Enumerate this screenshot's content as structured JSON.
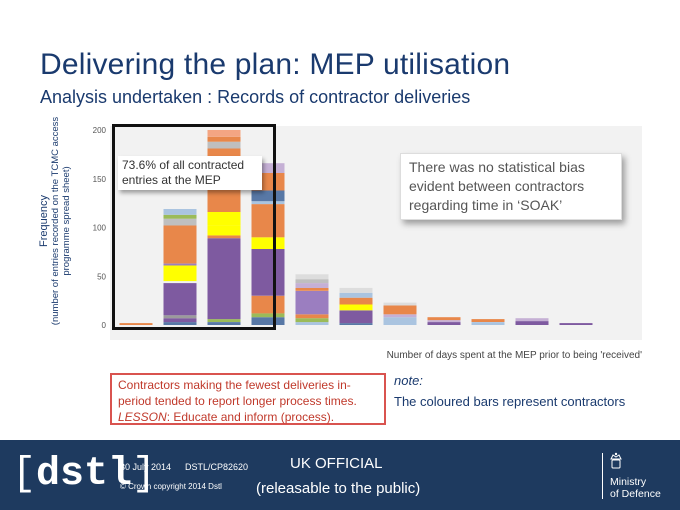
{
  "header": {
    "title": "Delivering the plan: MEP utilisation",
    "subtitle": "Analysis undertaken : Records of contractor deliveries"
  },
  "chart_data": {
    "type": "bar",
    "stacked": true,
    "title": "",
    "ylabel": "Frequency",
    "ylabel_note": "(number of entries recorded on the TCMC access programme spread sheet)",
    "xlabel": "Number of days spent at the MEP prior to being 'received'",
    "ylim": [
      0,
      200
    ],
    "yticks": [
      "0",
      "50",
      "100",
      "150",
      "200"
    ],
    "bin_count": 12,
    "bars": [
      {
        "index": 0,
        "segments": [
          {
            "color": "#e8874a",
            "value": 2
          }
        ]
      },
      {
        "index": 1,
        "segments": [
          {
            "color": "#5878a6",
            "value": 3
          },
          {
            "color": "#7e5aa0",
            "value": 4
          },
          {
            "color": "#9b9b9b",
            "value": 3
          },
          {
            "color": "#7e5aa0",
            "value": 33
          },
          {
            "color": "#f0f0f0",
            "value": 2
          },
          {
            "color": "#ffff00",
            "value": 16
          },
          {
            "color": "#9b7ec0",
            "value": 2
          },
          {
            "color": "#e8874a",
            "value": 39
          },
          {
            "color": "#bfbfbf",
            "value": 7
          },
          {
            "color": "#9bbb59",
            "value": 4
          },
          {
            "color": "#aac4e0",
            "value": 6
          }
        ]
      },
      {
        "index": 2,
        "segments": [
          {
            "color": "#5878a6",
            "value": 3
          },
          {
            "color": "#9bbb59",
            "value": 3
          },
          {
            "color": "#7e5aa0",
            "value": 83
          },
          {
            "color": "#e8874a",
            "value": 3
          },
          {
            "color": "#ffff00",
            "value": 10
          },
          {
            "color": "#ffff00",
            "value": 14
          },
          {
            "color": "#e8874a",
            "value": 30
          },
          {
            "color": "#5878a6",
            "value": 10
          },
          {
            "color": "#aac4e0",
            "value": 10
          },
          {
            "color": "#e8874a",
            "value": 15
          },
          {
            "color": "#bfbfbf",
            "value": 7
          },
          {
            "color": "#e8874a",
            "value": 5
          },
          {
            "color": "#f4a582",
            "value": 7
          }
        ]
      },
      {
        "index": 3,
        "segments": [
          {
            "color": "#5878a6",
            "value": 8
          },
          {
            "color": "#9bbb59",
            "value": 4
          },
          {
            "color": "#e8874a",
            "value": 18
          },
          {
            "color": "#7e5aa0",
            "value": 48
          },
          {
            "color": "#ffff00",
            "value": 12
          },
          {
            "color": "#e8874a",
            "value": 34
          },
          {
            "color": "#aac4e0",
            "value": 3
          },
          {
            "color": "#5878a6",
            "value": 11
          },
          {
            "color": "#e8874a",
            "value": 18
          },
          {
            "color": "#c5b0d5",
            "value": 10
          }
        ]
      },
      {
        "index": 4,
        "segments": [
          {
            "color": "#aac4e0",
            "value": 3
          },
          {
            "color": "#9bbb59",
            "value": 4
          },
          {
            "color": "#e8874a",
            "value": 4
          },
          {
            "color": "#9b7ec0",
            "value": 24
          },
          {
            "color": "#e8874a",
            "value": 3
          },
          {
            "color": "#c5b0d5",
            "value": 5
          },
          {
            "color": "#bfbfbf",
            "value": 4
          },
          {
            "color": "#dddddd",
            "value": 5
          }
        ]
      },
      {
        "index": 5,
        "segments": [
          {
            "color": "#5878a6",
            "value": 2
          },
          {
            "color": "#7e5aa0",
            "value": 13
          },
          {
            "color": "#ffff00",
            "value": 6
          },
          {
            "color": "#e8874a",
            "value": 7
          },
          {
            "color": "#aac4e0",
            "value": 5
          },
          {
            "color": "#dddddd",
            "value": 5
          }
        ]
      },
      {
        "index": 6,
        "segments": [
          {
            "color": "#aac4e0",
            "value": 8
          },
          {
            "color": "#c5b0d5",
            "value": 3
          },
          {
            "color": "#e8874a",
            "value": 9
          },
          {
            "color": "#dddddd",
            "value": 3
          }
        ]
      },
      {
        "index": 7,
        "segments": [
          {
            "color": "#7e5aa0",
            "value": 3
          },
          {
            "color": "#c5b0d5",
            "value": 2
          },
          {
            "color": "#e8874a",
            "value": 3
          }
        ]
      },
      {
        "index": 8,
        "segments": [
          {
            "color": "#aac4e0",
            "value": 3
          },
          {
            "color": "#e8874a",
            "value": 3
          }
        ]
      },
      {
        "index": 9,
        "segments": [
          {
            "color": "#7e5aa0",
            "value": 4
          },
          {
            "color": "#c5b0d5",
            "value": 3
          }
        ]
      },
      {
        "index": 10,
        "segments": [
          {
            "color": "#7e5aa0",
            "value": 2
          }
        ]
      },
      {
        "index": 11,
        "segments": []
      }
    ],
    "annotations": {
      "left_callout": "73.6% of all contracted entries at the MEP",
      "right_callout": "There was no statistical bias evident between contractors regarding time in ‘SOAK’"
    }
  },
  "lesson": {
    "line1": "Contractors making the fewest deliveries in-",
    "line2": "period tended to report longer process times.",
    "lesson_label": "LESSON",
    "lesson_text": ": Educate and inform (process)."
  },
  "note": {
    "label": "note:",
    "text": "The coloured bars represent contractors"
  },
  "footer": {
    "logo_text": "dstl",
    "date": "30 July 2014",
    "reference": "DSTL/CP82620",
    "copyright": "© Crown copyright 2014 Dstl",
    "classification": "UK OFFICIAL",
    "releasable": "(releasable to the public)",
    "mod_line1": "Ministry",
    "mod_line2": "of Defence"
  }
}
